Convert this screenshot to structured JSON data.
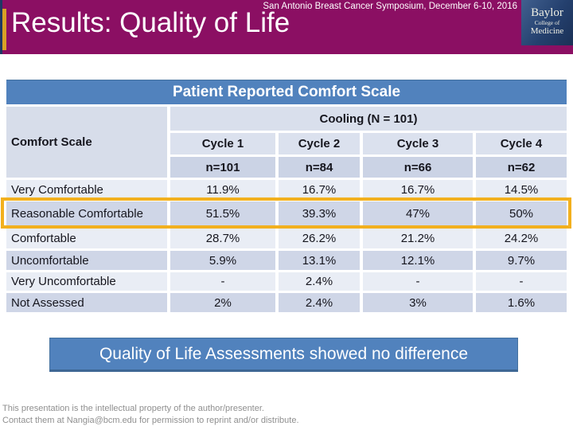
{
  "header": {
    "symposium": "San Antonio Breast Cancer Symposium, December 6-10, 2016",
    "title": "Results: Quality of Life",
    "logo": {
      "line1": "Baylor",
      "line2": "College of",
      "line3": "Medicine"
    }
  },
  "table": {
    "title": "Patient Reported Comfort Scale",
    "row_header_label": "Comfort Scale",
    "group_header": "Cooling (N = 101)",
    "columns": [
      {
        "cycle": "Cycle 1",
        "n": "n=101"
      },
      {
        "cycle": "Cycle 2",
        "n": "n=84"
      },
      {
        "cycle": "Cycle 3",
        "n": "n=66"
      },
      {
        "cycle": "Cycle 4",
        "n": "n=62"
      }
    ],
    "rows": [
      {
        "label": "Very Comfortable",
        "values": [
          "11.9%",
          "16.7%",
          "16.7%",
          "14.5%"
        ],
        "highlighted": false
      },
      {
        "label": "Reasonable Comfortable",
        "values": [
          "51.5%",
          "39.3%",
          "47%",
          "50%"
        ],
        "highlighted": true
      },
      {
        "label": "Comfortable",
        "values": [
          "28.7%",
          "26.2%",
          "21.2%",
          "24.2%"
        ],
        "highlighted": false
      },
      {
        "label": "Uncomfortable",
        "values": [
          "5.9%",
          "13.1%",
          "12.1%",
          "9.7%"
        ],
        "highlighted": false
      },
      {
        "label": "Very Uncomfortable",
        "values": [
          "-",
          "2.4%",
          "-",
          "-"
        ],
        "highlighted": false
      },
      {
        "label": "Not Assessed",
        "values": [
          "2%",
          "2.4%",
          "3%",
          "1.6%"
        ],
        "highlighted": false
      }
    ]
  },
  "conclusion": "Quality of Life Assessments showed no difference",
  "footer": {
    "line1": "This presentation is the intellectual property of the author/presenter.",
    "line2": "Contact them at Nangia@bcm.edu for permission to reprint and/or distribute."
  },
  "colors": {
    "header_magenta": "#8B0F63",
    "accent_blue": "#5182BD",
    "highlight_gold": "#F2B01E",
    "gold_stripe": "#D9A126",
    "logo_navy": "#24406E",
    "band_light": "#E9EDF5",
    "band_dark": "#CFD6E7",
    "footer_gray": "#8F8F8F"
  }
}
